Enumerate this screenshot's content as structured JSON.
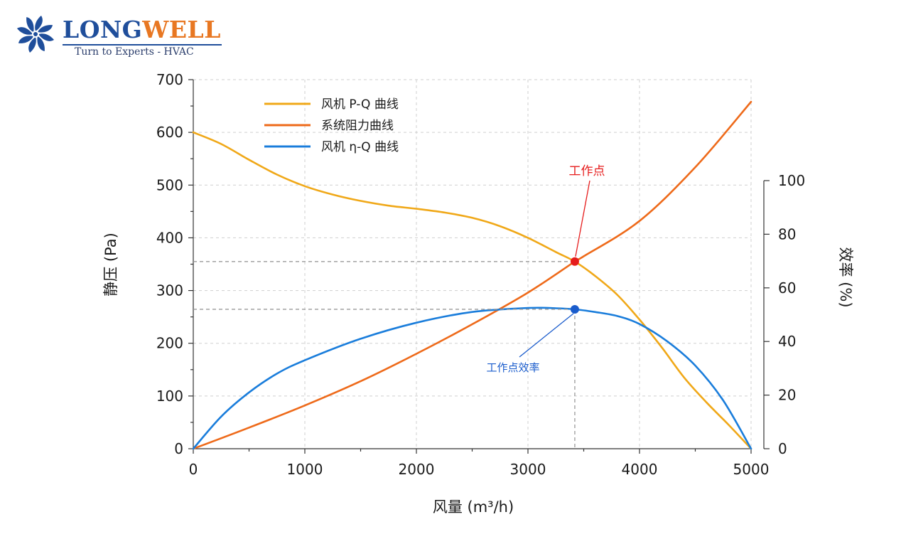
{
  "logo": {
    "brand_part1": "LONG",
    "brand_part2": "WELL",
    "tagline": "Turn to Experts - HVAC",
    "icon": "fan-icon",
    "colors": {
      "primary": "#1f4e9b",
      "accent": "#e87722"
    }
  },
  "chart_data": {
    "type": "line",
    "xlabel": "风量 (m³/h)",
    "ylabel": "静压 (Pa)",
    "y2label": "效率 (%)",
    "xlim": [
      0,
      5000
    ],
    "ylim": [
      0,
      700
    ],
    "y2lim": [
      0,
      100
    ],
    "x_ticks": [
      "0",
      "1000",
      "2000",
      "3000",
      "4000",
      "5000"
    ],
    "y_ticks": [
      "0",
      "100",
      "200",
      "300",
      "400",
      "500",
      "600",
      "700"
    ],
    "y2_ticks": [
      "0",
      "20",
      "40",
      "60",
      "80",
      "100"
    ],
    "grid": true,
    "legend_position": "top-left",
    "series": [
      {
        "name": "风机 P-Q 曲线",
        "axis": "left",
        "color": "#f0a818",
        "x": [
          0,
          250,
          500,
          750,
          1000,
          1250,
          1500,
          1750,
          2000,
          2250,
          2500,
          2750,
          3000,
          3250,
          3420,
          3600,
          3800,
          4000,
          4200,
          4400,
          4600,
          4800,
          5000
        ],
        "y": [
          600,
          578,
          548,
          520,
          498,
          482,
          470,
          461,
          455,
          448,
          438,
          422,
          400,
          373,
          355,
          328,
          292,
          245,
          192,
          135,
          88,
          45,
          0
        ]
      },
      {
        "name": "系统阻力曲线",
        "axis": "left",
        "color": "#ee6a1a",
        "x": [
          0,
          500,
          1000,
          1500,
          2000,
          2500,
          3000,
          3420,
          3500,
          4000,
          4500,
          5000
        ],
        "y": [
          0,
          40,
          82,
          128,
          180,
          236,
          296,
          355,
          365,
          432,
          534,
          658
        ]
      },
      {
        "name": "风机 η-Q 曲线",
        "axis": "right",
        "color": "#1a7ddb",
        "x": [
          0,
          250,
          500,
          750,
          1000,
          1500,
          2000,
          2500,
          3000,
          3250,
          3420,
          3600,
          3800,
          4000,
          4250,
          4500,
          4750,
          5000
        ],
        "y": [
          0,
          12,
          21,
          28,
          33,
          41,
          47,
          51,
          52.5,
          52.4,
          52,
          51,
          49.5,
          46.5,
          40,
          31,
          18,
          0
        ]
      }
    ],
    "annotations": [
      {
        "text": "工作点",
        "x": 3420,
        "y": 355,
        "axis": "left",
        "color": "#e61c1c"
      },
      {
        "text": "工作点效率",
        "x": 3420,
        "y": 52,
        "axis": "right",
        "color": "#1a5ccc"
      }
    ]
  }
}
